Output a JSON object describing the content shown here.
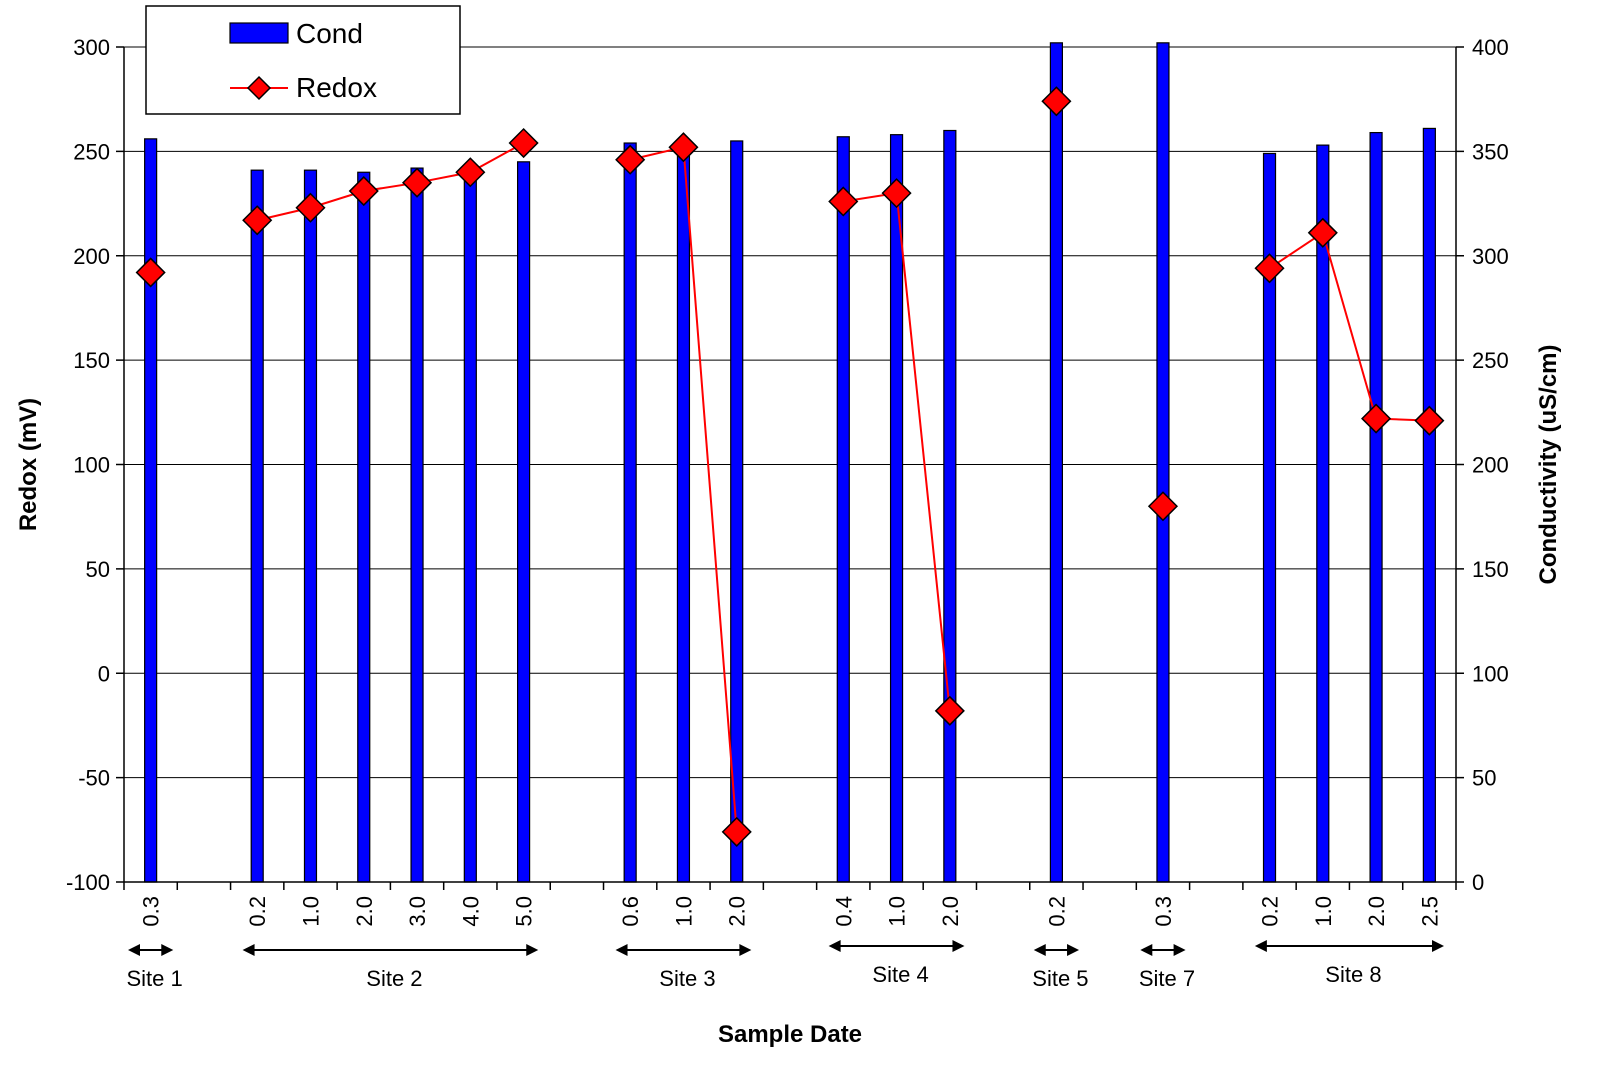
{
  "chart_data": {
    "type": "bar",
    "xlabel": "Sample Date",
    "ylabel_left": "Redox (mV)",
    "ylabel_right": "Conductivity (uS/cm)",
    "ylim_left": [
      -100,
      300
    ],
    "yticks_left": [
      -100,
      -50,
      0,
      50,
      100,
      150,
      200,
      250,
      300
    ],
    "ylim_right": [
      0,
      400
    ],
    "yticks_right": [
      0,
      50,
      100,
      150,
      200,
      250,
      300,
      350,
      400
    ],
    "grid": "horizontal",
    "legend_position": "top-left",
    "categories": [
      "0.3",
      "",
      "0.2",
      "1.0",
      "2.0",
      "3.0",
      "4.0",
      "5.0",
      "",
      "0.6",
      "1.0",
      "2.0",
      "",
      "0.4",
      "1.0",
      "2.0",
      "",
      "0.2",
      "",
      "0.3",
      "",
      "0.2",
      "1.0",
      "2.0",
      "2.5"
    ],
    "series": [
      {
        "name": "Cond",
        "type": "bar",
        "axis": "right",
        "color": "#0000ff",
        "values": [
          356,
          null,
          341,
          341,
          340,
          342,
          340,
          345,
          null,
          354,
          352,
          355,
          null,
          357,
          358,
          360,
          null,
          402,
          null,
          402,
          null,
          349,
          353,
          359,
          361
        ]
      },
      {
        "name": "Redox",
        "type": "line",
        "axis": "left",
        "color": "#ff0000",
        "marker": "diamond",
        "values": [
          192,
          null,
          217,
          223,
          231,
          235,
          240,
          254,
          null,
          246,
          252,
          -76,
          null,
          226,
          230,
          -18,
          null,
          274,
          null,
          80,
          null,
          194,
          211,
          122,
          121
        ]
      }
    ],
    "site_groups": [
      {
        "label": "Site 1",
        "start": 0,
        "end": 0
      },
      {
        "label": "Site 2",
        "start": 2,
        "end": 7
      },
      {
        "label": "Site 3",
        "start": 9,
        "end": 11
      },
      {
        "label": "Site 4",
        "start": 13,
        "end": 15
      },
      {
        "label": "Site 5",
        "start": 17,
        "end": 17
      },
      {
        "label": "Site 7",
        "start": 19,
        "end": 19
      },
      {
        "label": "Site 8",
        "start": 21,
        "end": 24
      }
    ]
  }
}
